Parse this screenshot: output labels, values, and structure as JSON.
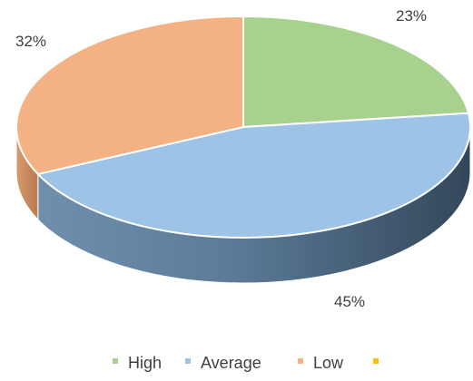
{
  "chart_data": {
    "type": "pie",
    "style": "3d",
    "categories": [
      "High",
      "Average",
      "Low"
    ],
    "values": [
      23,
      45,
      32
    ],
    "labels": [
      "23%",
      "45%",
      "32%"
    ],
    "colors": [
      "#a9d18e",
      "#9dc3e6",
      "#f4b183"
    ],
    "side_colors": [
      "#4a6680",
      "#4a6680",
      "#c98a5e"
    ],
    "legend": {
      "position": "bottom",
      "entries": [
        {
          "label": "High",
          "color": "#a9d18e"
        },
        {
          "label": "Average",
          "color": "#9dc3e6"
        },
        {
          "label": "Low",
          "color": "#f4b183"
        },
        {
          "label": "",
          "color": "#ffc000"
        }
      ]
    }
  }
}
